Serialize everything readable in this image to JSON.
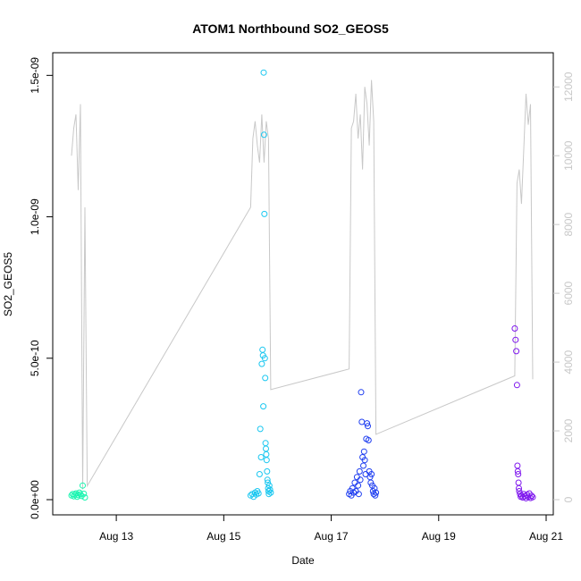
{
  "chart_data": {
    "type": "scatter",
    "title": "ATOM1 Northbound SO2_GEOS5",
    "xlabel": "Date",
    "ylabel": "SO2_GEOS5",
    "x_ticks": [
      "Aug 13",
      "Aug 15",
      "Aug 17",
      "Aug 19",
      "Aug 21"
    ],
    "y_ticks": [
      "0.0e+00",
      "5.0e-10",
      "1.0e-09",
      "1.5e-09"
    ],
    "y2_ticks": [
      "0",
      "2000",
      "4000",
      "6000",
      "8000",
      "10000",
      "12000"
    ],
    "xlim": [
      "2016-08-12",
      "2016-08-21"
    ],
    "ylim": [
      0,
      1.52e-09
    ],
    "y2lim": [
      0,
      12500
    ],
    "colors": {
      "day1": "#19f5b0",
      "day2": "#1ac7f0",
      "day3": "#1f3ef0",
      "day4": "#7f17ee",
      "altitude": "#c8c8c8"
    },
    "series": [
      {
        "x": [
          "2016-08-12 04:00",
          "2016-08-12 04:30",
          "2016-08-12 05:00",
          "2016-08-12 05:30",
          "2016-08-12 06:00",
          "2016-08-12 06:30",
          "2016-08-12 07:00",
          "2016-08-12 07:30",
          "2016-08-12 08:00",
          "2016-08-12 08:30",
          "2016-08-12 09:00",
          "2016-08-12 09:30",
          "2016-08-12 10:00"
        ],
        "values": [
          1.5e-11,
          2e-11,
          1.2e-11,
          1.8e-11,
          2.2e-11,
          1e-11,
          1.6e-11,
          2.5e-11,
          1.9e-11,
          1.3e-11,
          5e-11,
          2.1e-11,
          8e-12
        ]
      },
      {
        "x": [
          "2016-08-15 12:00",
          "2016-08-15 12:40",
          "2016-08-15 13:20",
          "2016-08-15 14:00",
          "2016-08-15 14:30",
          "2016-08-15 15:00",
          "2016-08-15 15:30",
          "2016-08-15 16:00",
          "2016-08-15 16:20",
          "2016-08-15 16:40",
          "2016-08-15 17:00",
          "2016-08-15 17:20",
          "2016-08-15 17:30",
          "2016-08-15 17:40",
          "2016-08-15 17:50",
          "2016-08-15 18:00",
          "2016-08-15 18:10",
          "2016-08-15 18:20",
          "2016-08-15 18:30",
          "2016-08-15 18:40",
          "2016-08-15 18:50",
          "2016-08-15 19:00",
          "2016-08-15 19:10",
          "2016-08-15 19:20",
          "2016-08-15 19:30",
          "2016-08-15 19:40",
          "2016-08-15 19:50",
          "2016-08-15 20:00",
          "2016-08-15 20:10",
          "2016-08-15 20:20",
          "2016-08-15 20:40",
          "2016-08-15 21:00"
        ],
        "values": [
          1.5e-11,
          2e-11,
          1e-11,
          2.5e-11,
          1.8e-11,
          3e-11,
          2.2e-11,
          9e-11,
          2.5e-10,
          1.5e-10,
          4.8e-10,
          5.3e-10,
          5.1e-10,
          3.3e-10,
          1.51e-09,
          1.29e-09,
          1.01e-09,
          5e-10,
          4.3e-10,
          2e-10,
          1.8e-10,
          1.6e-10,
          1.4e-10,
          1e-10,
          7e-11,
          6e-11,
          4e-11,
          3e-11,
          2e-11,
          5e-11,
          3.5e-11,
          2.5e-11
        ]
      },
      {
        "x": [
          "2016-08-17 08:00",
          "2016-08-17 08:30",
          "2016-08-17 09:00",
          "2016-08-17 09:30",
          "2016-08-17 10:00",
          "2016-08-17 10:30",
          "2016-08-17 11:00",
          "2016-08-17 11:30",
          "2016-08-17 12:00",
          "2016-08-17 12:20",
          "2016-08-17 12:40",
          "2016-08-17 13:00",
          "2016-08-17 13:20",
          "2016-08-17 13:40",
          "2016-08-17 14:00",
          "2016-08-17 14:20",
          "2016-08-17 14:40",
          "2016-08-17 15:00",
          "2016-08-17 15:20",
          "2016-08-17 15:40",
          "2016-08-17 16:00",
          "2016-08-17 16:20",
          "2016-08-17 16:40",
          "2016-08-17 17:00",
          "2016-08-17 17:20",
          "2016-08-17 17:40",
          "2016-08-17 18:00",
          "2016-08-17 18:20",
          "2016-08-17 18:40",
          "2016-08-17 19:00",
          "2016-08-17 19:20",
          "2016-08-17 19:40",
          "2016-08-17 20:00"
        ],
        "values": [
          2e-11,
          3e-11,
          1.5e-11,
          4e-11,
          2.5e-11,
          6e-11,
          3e-11,
          8e-11,
          5e-11,
          2e-11,
          1e-10,
          7e-11,
          3.8e-10,
          2.75e-10,
          1.5e-10,
          1.2e-10,
          1.7e-10,
          1.4e-10,
          9e-11,
          2.15e-10,
          2.7e-10,
          2.6e-10,
          2.1e-10,
          1e-10,
          8e-11,
          6e-11,
          9e-11,
          5e-11,
          3e-11,
          2e-11,
          4e-11,
          1.5e-11,
          2.5e-11
        ]
      },
      {
        "x": [
          "2016-08-20 10:00",
          "2016-08-20 10:20",
          "2016-08-20 10:40",
          "2016-08-20 11:00",
          "2016-08-20 11:10",
          "2016-08-20 11:20",
          "2016-08-20 11:30",
          "2016-08-20 11:40",
          "2016-08-20 11:50",
          "2016-08-20 12:00",
          "2016-08-20 12:20",
          "2016-08-20 12:40",
          "2016-08-20 13:00",
          "2016-08-20 13:30",
          "2016-08-20 14:00",
          "2016-08-20 14:30",
          "2016-08-20 15:00",
          "2016-08-20 15:30",
          "2016-08-20 16:00",
          "2016-08-20 16:30",
          "2016-08-20 17:00",
          "2016-08-20 17:30",
          "2016-08-20 18:00"
        ],
        "values": [
          6.05e-10,
          5.65e-10,
          5.25e-10,
          4.05e-10,
          1.2e-10,
          1e-10,
          9e-11,
          6e-11,
          4e-11,
          3e-11,
          2e-11,
          1e-11,
          1.5e-11,
          8e-12,
          2e-11,
          1.2e-11,
          5e-12,
          1.8e-11,
          1e-11,
          2.2e-11,
          6e-12,
          1.4e-11,
          9e-12
        ]
      }
    ],
    "altitude_profile": {
      "description_axis": "right",
      "x": [
        "2016-08-12 04:00",
        "2016-08-12 05:00",
        "2016-08-12 06:00",
        "2016-08-12 07:00",
        "2016-08-12 08:00",
        "2016-08-12 09:00",
        "2016-08-12 10:00",
        "2016-08-12 11:00",
        "2016-08-15 12:00",
        "2016-08-15 13:00",
        "2016-08-15 14:00",
        "2016-08-15 15:00",
        "2016-08-15 16:00",
        "2016-08-15 17:00",
        "2016-08-15 18:00",
        "2016-08-15 19:00",
        "2016-08-15 20:00",
        "2016-08-15 21:00",
        "2016-08-17 08:00",
        "2016-08-17 09:00",
        "2016-08-17 10:00",
        "2016-08-17 11:00",
        "2016-08-17 12:00",
        "2016-08-17 13:00",
        "2016-08-17 14:00",
        "2016-08-17 15:00",
        "2016-08-17 16:00",
        "2016-08-17 17:00",
        "2016-08-17 18:00",
        "2016-08-17 19:00",
        "2016-08-17 20:00",
        "2016-08-20 10:00",
        "2016-08-20 11:00",
        "2016-08-20 12:00",
        "2016-08-20 13:00",
        "2016-08-20 14:00",
        "2016-08-20 15:00",
        "2016-08-20 16:00",
        "2016-08-20 17:00",
        "2016-08-20 18:00"
      ],
      "values": [
        10000,
        10800,
        11200,
        9000,
        11500,
        300,
        8500,
        400,
        8500,
        10500,
        11000,
        10300,
        9800,
        11200,
        9800,
        11000,
        10500,
        3200,
        3800,
        10800,
        11000,
        11800,
        10500,
        11200,
        9600,
        12000,
        11500,
        10300,
        12200,
        11000,
        1900,
        3600,
        9200,
        9600,
        8600,
        10200,
        11800,
        10900,
        11500,
        3500
      ]
    }
  }
}
